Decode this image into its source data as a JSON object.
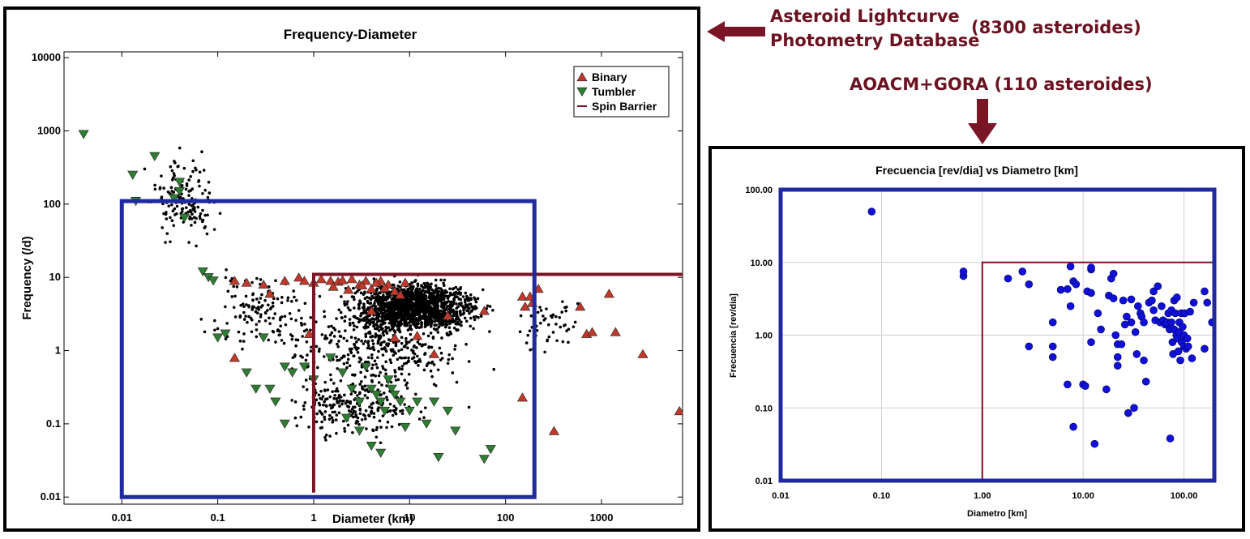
{
  "annotations": {
    "database_line1": "Asteroid Lightcurve",
    "database_line2": "Photometry Database",
    "database_count": "(8300 asteroides)",
    "survey_label": "AOACM+GORA (110 asteroides)",
    "arrow_color": "#7a1526"
  },
  "chart_data": [
    {
      "type": "scatter",
      "title": "Frequency-Diameter",
      "xlabel": "Diameter (km)",
      "ylabel": "Frequency (/d)",
      "xscale": "log",
      "yscale": "log",
      "xlim": [
        0.0025,
        7000
      ],
      "ylim": [
        0.008,
        12000
      ],
      "xticks": [
        0.01,
        0.1,
        1,
        10,
        100,
        1000
      ],
      "xtick_labels": [
        "0.01",
        "0.1",
        "1",
        "10",
        "100",
        "1000"
      ],
      "yticks": [
        0.01,
        0.1,
        1,
        10,
        100,
        1000,
        10000
      ],
      "ytick_labels": [
        "0.01",
        "0.1",
        "1",
        "10",
        "100",
        "1000",
        "10000"
      ],
      "grid": false,
      "legend": {
        "position": "top-right",
        "entries": [
          {
            "label": "Binary",
            "marker": "triangle-up",
            "color": "#c0392b"
          },
          {
            "label": "Tumbler",
            "marker": "triangle-down",
            "color": "#2e7d32"
          },
          {
            "label": "Spin Barrier",
            "marker": "line",
            "color": "#7a1526"
          }
        ]
      },
      "series": [
        {
          "name": "Binary",
          "color": "#c0392b",
          "points": [
            [
              0.15,
              9
            ],
            [
              0.2,
              8.5
            ],
            [
              0.3,
              8
            ],
            [
              0.35,
              6
            ],
            [
              0.5,
              9
            ],
            [
              0.7,
              10
            ],
            [
              0.8,
              9
            ],
            [
              1.0,
              8.5
            ],
            [
              1.2,
              9.5
            ],
            [
              1.5,
              9
            ],
            [
              1.8,
              8.8
            ],
            [
              2.0,
              9.2
            ],
            [
              2.5,
              9.5
            ],
            [
              3.0,
              8
            ],
            [
              3.5,
              9
            ],
            [
              4.0,
              7
            ],
            [
              5.0,
              9
            ],
            [
              6.0,
              8
            ],
            [
              7.0,
              6.5
            ],
            [
              8.0,
              5.8
            ],
            [
              1.6,
              7.5
            ],
            [
              2.3,
              6.8
            ],
            [
              3.2,
              7.8
            ],
            [
              4.5,
              8.5
            ],
            [
              5.5,
              7.2
            ],
            [
              9.0,
              8.5
            ],
            [
              0.9,
              1.7
            ],
            [
              4.0,
              3.5
            ],
            [
              7.0,
              1.5
            ],
            [
              0.15,
              0.8
            ],
            [
              150,
              5.5
            ],
            [
              160,
              4
            ],
            [
              190,
              4.5
            ],
            [
              220,
              7
            ],
            [
              320,
              0.08
            ],
            [
              600,
              4
            ],
            [
              700,
              1.7
            ],
            [
              800,
              1.8
            ],
            [
              1200,
              6
            ],
            [
              1400,
              1.8
            ],
            [
              2700,
              0.9
            ],
            [
              6500,
              0.15
            ],
            [
              150,
              0.23
            ],
            [
              180,
              5.5
            ],
            [
              12,
              1.6
            ],
            [
              18,
              0.9
            ],
            [
              25,
              3
            ],
            [
              60,
              3.5
            ]
          ]
        },
        {
          "name": "Tumbler",
          "color": "#2e7d32",
          "points": [
            [
              0.004,
              900
            ],
            [
              0.013,
              250
            ],
            [
              0.014,
              110
            ],
            [
              0.022,
              450
            ],
            [
              0.035,
              120
            ],
            [
              0.04,
              200
            ],
            [
              0.04,
              150
            ],
            [
              0.045,
              65
            ],
            [
              0.07,
              12
            ],
            [
              0.08,
              10
            ],
            [
              0.09,
              9
            ],
            [
              0.1,
              1.5
            ],
            [
              0.12,
              1.7
            ],
            [
              0.2,
              0.5
            ],
            [
              0.25,
              0.3
            ],
            [
              0.3,
              1.5
            ],
            [
              0.35,
              0.3
            ],
            [
              0.4,
              0.2
            ],
            [
              0.5,
              0.6
            ],
            [
              0.5,
              0.1
            ],
            [
              0.6,
              0.5
            ],
            [
              0.8,
              0.6
            ],
            [
              1.0,
              0.4
            ],
            [
              1.5,
              0.8
            ],
            [
              2.0,
              0.5
            ],
            [
              2.5,
              0.3
            ],
            [
              3.0,
              0.2
            ],
            [
              3.5,
              0.6
            ],
            [
              4.0,
              0.3
            ],
            [
              4.5,
              0.25
            ],
            [
              5.0,
              0.2
            ],
            [
              5.5,
              0.15
            ],
            [
              6.0,
              0.4
            ],
            [
              6.5,
              0.3
            ],
            [
              7.0,
              0.25
            ],
            [
              8.0,
              0.2
            ],
            [
              10.0,
              0.15
            ],
            [
              12.0,
              0.2
            ],
            [
              15.0,
              0.1
            ],
            [
              18.0,
              0.2
            ],
            [
              20.0,
              0.035
            ],
            [
              25.0,
              0.15
            ],
            [
              30.0,
              0.08
            ],
            [
              60.0,
              0.033
            ],
            [
              70.0,
              0.045
            ],
            [
              3.0,
              0.08
            ],
            [
              4.0,
              0.05
            ],
            [
              5.0,
              0.04
            ],
            [
              9.0,
              0.09
            ],
            [
              2.2,
              0.12
            ]
          ]
        },
        {
          "name": "Spin Barrier",
          "color": "#7a1526",
          "points": [
            [
              1,
              0.0115
            ],
            [
              1,
              11
            ],
            [
              7000,
              11
            ]
          ]
        }
      ],
      "highlight_box": {
        "x": [
          0.01,
          200
        ],
        "y": [
          0.01,
          110
        ],
        "color": "#1f2aa0"
      }
    },
    {
      "type": "scatter",
      "title": "Frecuencia [rev/dia] vs Diametro [km]",
      "xlabel": "Diametro [km]",
      "ylabel": "Frecuencia  [rev/dia]",
      "xscale": "log",
      "yscale": "log",
      "xlim": [
        0.01,
        200
      ],
      "ylim": [
        0.01,
        100
      ],
      "xticks": [
        0.01,
        0.1,
        1,
        10,
        100
      ],
      "xtick_labels": [
        "0.01",
        "0.10",
        "1.00",
        "10.00",
        "100.00"
      ],
      "yticks": [
        0.01,
        0.1,
        1,
        10,
        100
      ],
      "ytick_labels": [
        "0.01",
        "0.10",
        "1.00",
        "10.00",
        "100.00"
      ],
      "grid": true,
      "series": [
        {
          "name": "",
          "color": "#1010d8",
          "points": [
            [
              0.08,
              50
            ],
            [
              0.65,
              6.5
            ],
            [
              0.65,
              7.5
            ],
            [
              1.8,
              6
            ],
            [
              2.5,
              7.5
            ],
            [
              2.9,
              5
            ],
            [
              2.9,
              0.7
            ],
            [
              5,
              1.5
            ],
            [
              5,
              0.7
            ],
            [
              5,
              0.5
            ],
            [
              6,
              4.2
            ],
            [
              7,
              4.3
            ],
            [
              7,
              0.21
            ],
            [
              7.5,
              2.5
            ],
            [
              7.5,
              8.8
            ],
            [
              8,
              5.5
            ],
            [
              8,
              0.055
            ],
            [
              8.5,
              5
            ],
            [
              10,
              0.21
            ],
            [
              10.5,
              0.2
            ],
            [
              11,
              4
            ],
            [
              12,
              3.8
            ],
            [
              12,
              8
            ],
            [
              12,
              8.5
            ],
            [
              12,
              0.8
            ],
            [
              13,
              0.032
            ],
            [
              14,
              2
            ],
            [
              15,
              1.2
            ],
            [
              17,
              0.18
            ],
            [
              18,
              3.5
            ],
            [
              19,
              6
            ],
            [
              20,
              7
            ],
            [
              20,
              3.2
            ],
            [
              21,
              1
            ],
            [
              22,
              0.5
            ],
            [
              22,
              0.75
            ],
            [
              22,
              0.38
            ],
            [
              24,
              0.75
            ],
            [
              25,
              3
            ],
            [
              26,
              1.4
            ],
            [
              27,
              1.8
            ],
            [
              28,
              0.085
            ],
            [
              30,
              3.1
            ],
            [
              30,
              1.5
            ],
            [
              32,
              0.1
            ],
            [
              33,
              1.1
            ],
            [
              34,
              0.55
            ],
            [
              35,
              2.5
            ],
            [
              37,
              2
            ],
            [
              38,
              1.8
            ],
            [
              40,
              1.5
            ],
            [
              40,
              0.45
            ],
            [
              42,
              0.23
            ],
            [
              45,
              2.8
            ],
            [
              48,
              3
            ],
            [
              50,
              4
            ],
            [
              50,
              2.2
            ],
            [
              52,
              1.6
            ],
            [
              55,
              4.7
            ],
            [
              58,
              1.5
            ],
            [
              60,
              2.5
            ],
            [
              62,
              1.6
            ],
            [
              65,
              1.4
            ],
            [
              68,
              1.5
            ],
            [
              70,
              2
            ],
            [
              72,
              1.2
            ],
            [
              73,
              0.038
            ],
            [
              75,
              2.2
            ],
            [
              75,
              1.5
            ],
            [
              77,
              0.8
            ],
            [
              78,
              0.55
            ],
            [
              80,
              3
            ],
            [
              80,
              1.2
            ],
            [
              82,
              2
            ],
            [
              84,
              1
            ],
            [
              85,
              3.3
            ],
            [
              86,
              0.9
            ],
            [
              88,
              0.6
            ],
            [
              90,
              1.5
            ],
            [
              90,
              1.1
            ],
            [
              92,
              0.45
            ],
            [
              94,
              2
            ],
            [
              95,
              0.8
            ],
            [
              97,
              1.3
            ],
            [
              100,
              1
            ],
            [
              100,
              0.7
            ],
            [
              102,
              2
            ],
            [
              105,
              0.65
            ],
            [
              108,
              0.9
            ],
            [
              110,
              0.7
            ],
            [
              115,
              2.1
            ],
            [
              120,
              0.48
            ],
            [
              125,
              2.8
            ],
            [
              160,
              4
            ],
            [
              160,
              0.65
            ],
            [
              170,
              2.8
            ],
            [
              190,
              1.5
            ]
          ]
        },
        {
          "name": "",
          "color": "#7a1526",
          "points": [
            [
              1,
              0.01
            ],
            [
              1,
              10
            ],
            [
              200,
              10
            ]
          ]
        }
      ],
      "highlight_box": {
        "x": [
          0.01,
          200
        ],
        "y": [
          0.01,
          100
        ],
        "color": "#1f2aa0"
      }
    }
  ]
}
